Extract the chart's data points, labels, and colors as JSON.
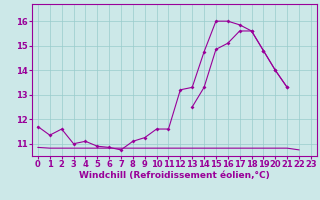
{
  "xlabel": "Windchill (Refroidissement éolien,°C)",
  "background_color": "#cce8e8",
  "line_color": "#990099",
  "xlim": [
    -0.5,
    23.5
  ],
  "ylim": [
    10.5,
    16.7
  ],
  "yticks": [
    11,
    12,
    13,
    14,
    15,
    16
  ],
  "xticks": [
    0,
    1,
    2,
    3,
    4,
    5,
    6,
    7,
    8,
    9,
    10,
    11,
    12,
    13,
    14,
    15,
    16,
    17,
    18,
    19,
    20,
    21,
    22,
    23
  ],
  "line1_y": [
    11.7,
    11.35,
    11.6,
    11.0,
    11.1,
    10.9,
    10.85,
    10.75,
    11.1,
    11.25,
    11.6,
    11.6,
    13.2,
    13.3,
    14.75,
    16.0,
    16.0,
    15.85,
    15.6,
    14.8,
    14.0,
    13.3,
    null,
    null
  ],
  "line2_y": [
    null,
    null,
    null,
    null,
    null,
    null,
    null,
    null,
    null,
    null,
    null,
    null,
    null,
    12.5,
    13.3,
    14.85,
    15.1,
    15.6,
    15.6,
    14.8,
    14.0,
    13.3,
    null,
    null
  ],
  "line3_y": [
    10.85,
    10.82,
    10.82,
    10.82,
    10.82,
    10.82,
    10.82,
    10.82,
    10.82,
    10.82,
    10.82,
    10.82,
    10.82,
    10.82,
    10.82,
    10.82,
    10.82,
    10.82,
    10.82,
    10.82,
    10.82,
    10.82,
    10.75,
    null
  ],
  "grid_color": "#99cccc",
  "xlabel_fontsize": 6.5,
  "tick_fontsize": 6.0
}
